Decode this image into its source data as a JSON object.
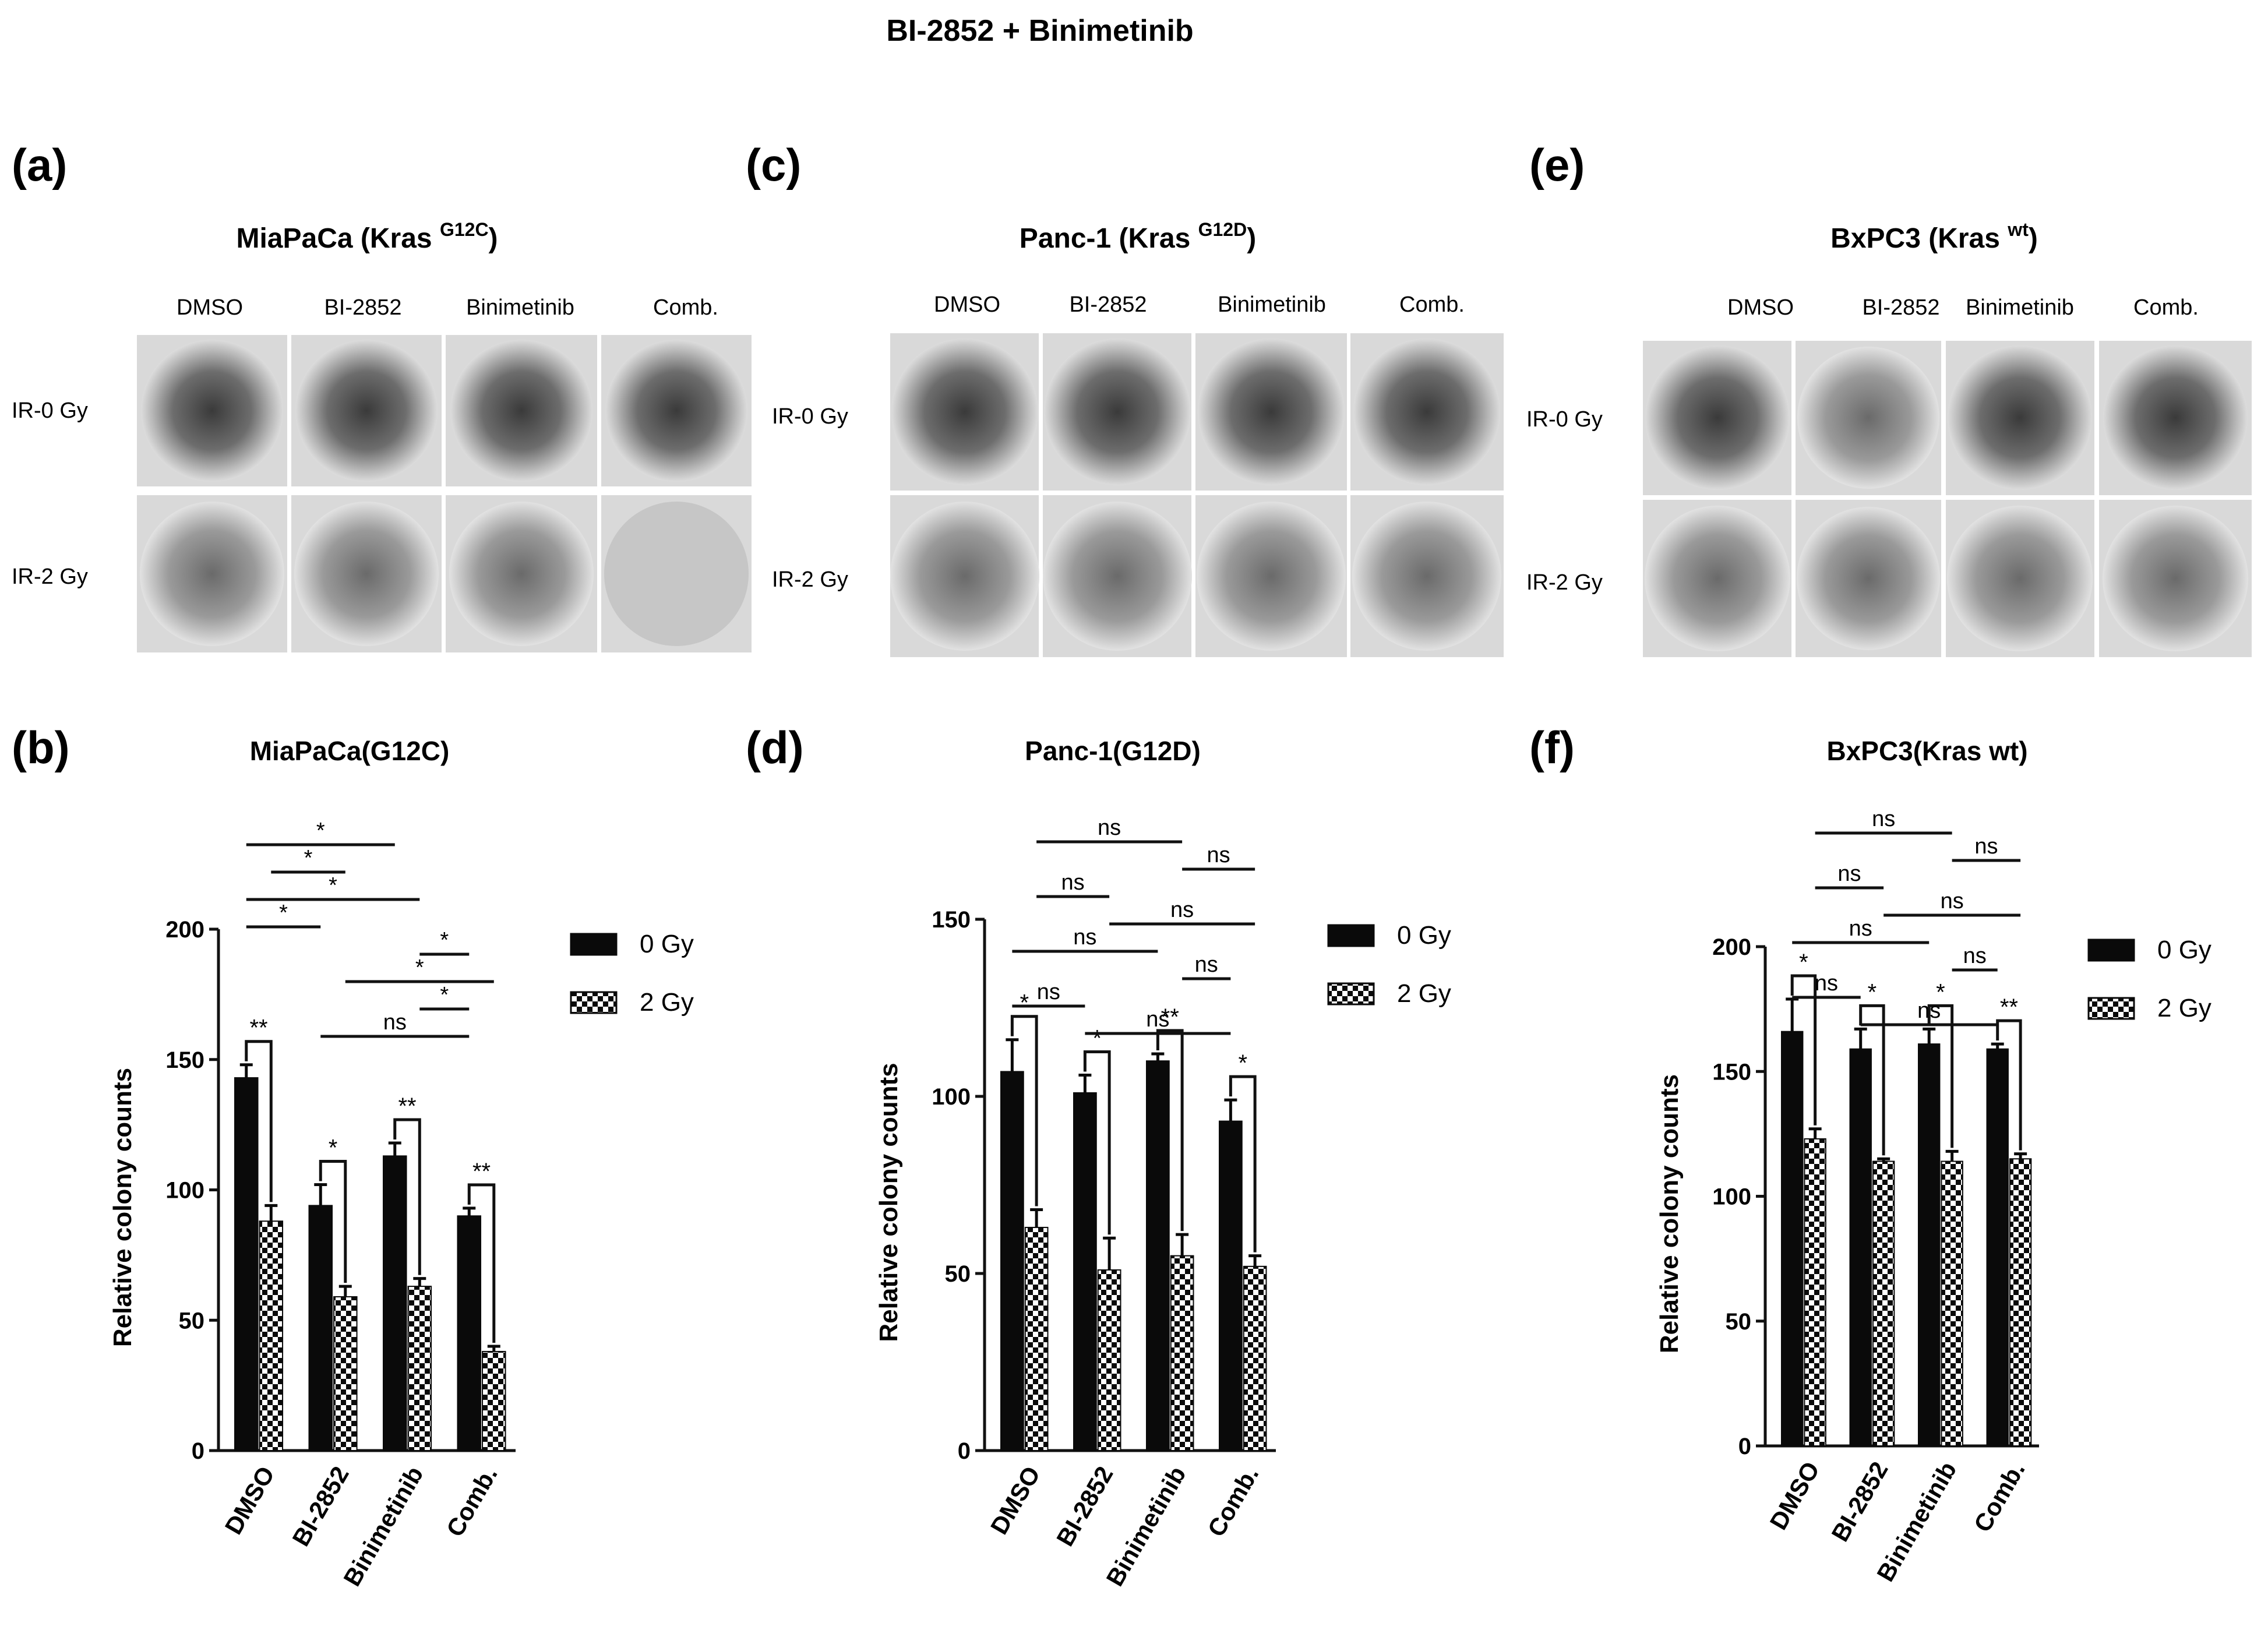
{
  "figure_title": "BI-2852  + Binimetinib",
  "colors": {
    "dark_bar": "#0a0a0a",
    "checker_dark": "#0a0a0a",
    "checker_light": "#ffffff",
    "axis": "#111111",
    "dish_gray": "#cfcfcf"
  },
  "image_panels": [
    {
      "letter": "(a)",
      "title": "MiaPaCa (Kras",
      "superscript": "G12C",
      "title_close": ")",
      "columns": [
        "DMSO",
        "BI-2852",
        "Binimetinib",
        "Comb."
      ],
      "rows": [
        "IR-0 Gy",
        "IR-2 Gy"
      ]
    },
    {
      "letter": "(c)",
      "title": "Panc-1 (Kras",
      "superscript": "G12D",
      "title_close": ")",
      "columns": [
        "DMSO",
        "BI-2852",
        "Binimetinib",
        "Comb."
      ],
      "rows": [
        "IR-0 Gy",
        "IR-2 Gy"
      ]
    },
    {
      "letter": "(e)",
      "title": "BxPC3 (Kras",
      "superscript": "wt",
      "title_close": ")",
      "columns": [
        "DMSO",
        "BI-2852",
        "Binimetinib",
        "Comb."
      ],
      "rows": [
        "IR-0 Gy",
        "IR-2 Gy"
      ]
    }
  ],
  "chart_data": [
    {
      "letter": "(b)",
      "type": "bar",
      "title": "MiaPaCa(G12C)",
      "ylabel": "Relative colony counts",
      "ylim": [
        0,
        200
      ],
      "yticks": [
        0,
        50,
        100,
        150,
        200
      ],
      "categories": [
        "DMSO",
        "BI-2852",
        "Binimetinib",
        "Comb."
      ],
      "series": [
        {
          "name": "0 Gy",
          "pattern": "solid",
          "values": [
            143,
            94,
            113,
            90
          ],
          "errors": [
            5,
            8,
            5,
            3
          ]
        },
        {
          "name": "2 Gy",
          "pattern": "checker",
          "values": [
            88,
            59,
            63,
            38
          ],
          "errors": [
            6,
            4,
            3,
            2
          ]
        }
      ],
      "legend": [
        "0 Gy",
        "2 Gy"
      ],
      "pair_annotations": [
        "**",
        "*",
        "**",
        "**"
      ],
      "comparisons": [
        {
          "label": "*",
          "from": [
            0,
            0
          ],
          "to": [
            2,
            0
          ]
        },
        {
          "label": "*",
          "from": [
            0,
            0.5
          ],
          "to": [
            1,
            0.5
          ]
        },
        {
          "label": "*",
          "from": [
            0,
            0
          ],
          "to": [
            2,
            0.5
          ]
        },
        {
          "label": "*",
          "from": [
            0,
            0
          ],
          "to": [
            1,
            0
          ]
        },
        {
          "label": "*",
          "from": [
            2,
            0.5
          ],
          "to": [
            3,
            0
          ]
        },
        {
          "label": "*",
          "from": [
            1,
            0.5
          ],
          "to": [
            3,
            0.5
          ]
        },
        {
          "label": "*",
          "from": [
            2,
            0.5
          ],
          "to": [
            3,
            0
          ]
        },
        {
          "label": "ns",
          "from": [
            1,
            0
          ],
          "to": [
            3,
            0
          ]
        }
      ]
    },
    {
      "letter": "(d)",
      "type": "bar",
      "title": "Panc-1(G12D)",
      "ylabel": "Relative colony counts",
      "ylim": [
        0,
        150
      ],
      "yticks": [
        0,
        50,
        100,
        150
      ],
      "categories": [
        "DMSO",
        "BI-2852",
        "Binimetinib",
        "Comb."
      ],
      "series": [
        {
          "name": "0 Gy",
          "pattern": "solid",
          "values": [
            107,
            101,
            110,
            93
          ],
          "errors": [
            9,
            5,
            2,
            6
          ]
        },
        {
          "name": "2 Gy",
          "pattern": "checker",
          "values": [
            63,
            51,
            55,
            52
          ],
          "errors": [
            5,
            9,
            6,
            3
          ]
        }
      ],
      "legend": [
        "0 Gy",
        "2 Gy"
      ],
      "pair_annotations": [
        "*",
        "*",
        "**",
        "*"
      ],
      "comparisons": [
        {
          "label": "ns",
          "from": [
            0,
            0.5
          ],
          "to": [
            2,
            0.5
          ]
        },
        {
          "label": "ns",
          "from": [
            2,
            0.5
          ],
          "to": [
            3,
            0.5
          ]
        },
        {
          "label": "ns",
          "from": [
            0,
            0.5
          ],
          "to": [
            1,
            0.5
          ]
        },
        {
          "label": "ns",
          "from": [
            1,
            0.5
          ],
          "to": [
            3,
            0.5
          ]
        },
        {
          "label": "ns",
          "from": [
            0,
            0
          ],
          "to": [
            2,
            0
          ]
        },
        {
          "label": "ns",
          "from": [
            2,
            0.5
          ],
          "to": [
            3,
            0
          ]
        },
        {
          "label": "ns",
          "from": [
            0,
            0
          ],
          "to": [
            1,
            0
          ]
        },
        {
          "label": "ns",
          "from": [
            1,
            0
          ],
          "to": [
            3,
            0
          ]
        }
      ]
    },
    {
      "letter": "(f)",
      "type": "bar",
      "title": "BxPC3(Kras wt)",
      "ylabel": "Relative colony counts",
      "ylim": [
        0,
        200
      ],
      "yticks": [
        0,
        50,
        100,
        150,
        200
      ],
      "categories": [
        "DMSO",
        "BI-2852",
        "Binimetinib",
        "Comb."
      ],
      "series": [
        {
          "name": "0 Gy",
          "pattern": "solid",
          "values": [
            166,
            159,
            161,
            159
          ],
          "errors": [
            13,
            8,
            6,
            2
          ]
        },
        {
          "name": "2 Gy",
          "pattern": "checker",
          "values": [
            123,
            114,
            114,
            115
          ],
          "errors": [
            4,
            1,
            4,
            2
          ]
        }
      ],
      "legend": [
        "0 Gy",
        "2 Gy"
      ],
      "pair_annotations": [
        "*",
        "*",
        "*",
        "**"
      ],
      "comparisons": [
        {
          "label": "ns",
          "from": [
            0,
            0.5
          ],
          "to": [
            2,
            0.5
          ]
        },
        {
          "label": "ns",
          "from": [
            2,
            0.5
          ],
          "to": [
            3,
            0.5
          ]
        },
        {
          "label": "ns",
          "from": [
            0,
            0.5
          ],
          "to": [
            1,
            0.5
          ]
        },
        {
          "label": "ns",
          "from": [
            1,
            0.5
          ],
          "to": [
            3,
            0.5
          ]
        },
        {
          "label": "ns",
          "from": [
            0,
            0
          ],
          "to": [
            2,
            0
          ]
        },
        {
          "label": "ns",
          "from": [
            2,
            0.5
          ],
          "to": [
            3,
            0
          ]
        },
        {
          "label": "ns",
          "from": [
            0,
            0
          ],
          "to": [
            1,
            0
          ]
        },
        {
          "label": "ns",
          "from": [
            1,
            0
          ],
          "to": [
            3,
            0
          ]
        }
      ]
    }
  ]
}
